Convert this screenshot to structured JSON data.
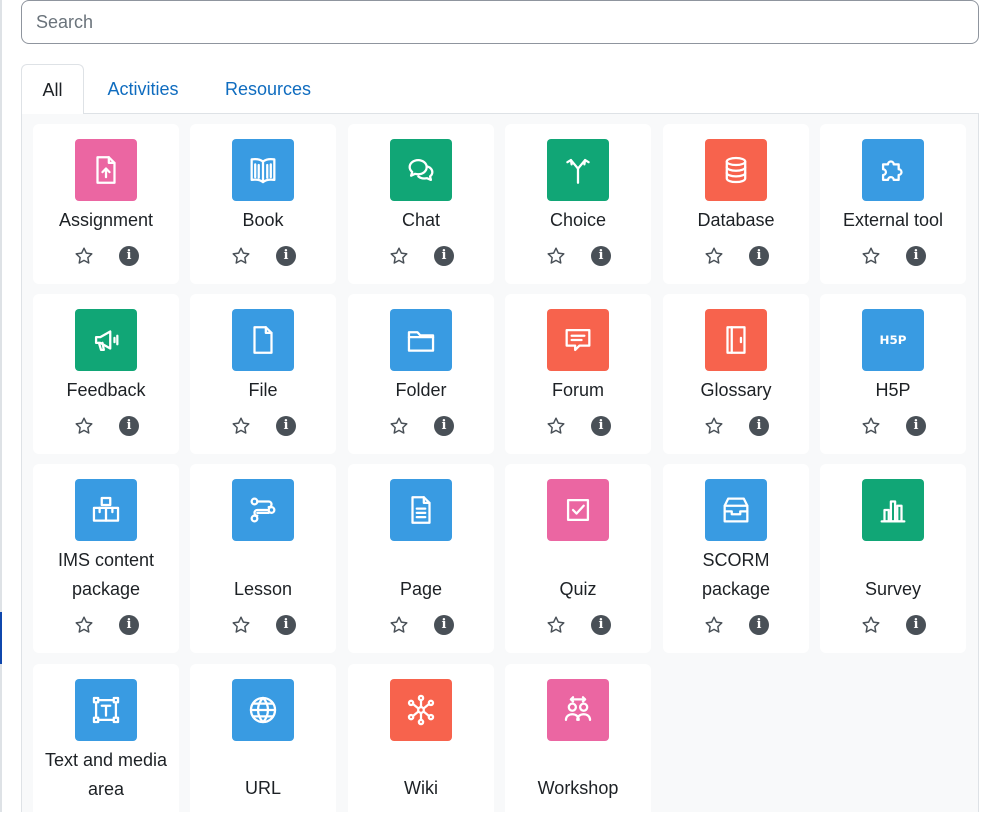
{
  "search": {
    "placeholder": "Search",
    "value": ""
  },
  "tabs": [
    {
      "label": "All",
      "active": true
    },
    {
      "label": "Activities",
      "active": false
    },
    {
      "label": "Resources",
      "active": false
    }
  ],
  "colors": {
    "administration": "#f7634d",
    "assessment": "#eb66a2",
    "collaboration": "#f7634d",
    "communication": "#11a676",
    "content": "#399be2",
    "interface": "#a378ff",
    "link": "#0f6cbf",
    "text": "#1d2125",
    "info_icon": "#495057"
  },
  "modules": [
    {
      "name": "Assignment",
      "icon": "assignment-icon",
      "color": "#eb66a2"
    },
    {
      "name": "Book",
      "icon": "book-icon",
      "color": "#399be2"
    },
    {
      "name": "Chat",
      "icon": "chat-icon",
      "color": "#11a676"
    },
    {
      "name": "Choice",
      "icon": "choice-icon",
      "color": "#11a676"
    },
    {
      "name": "Database",
      "icon": "database-icon",
      "color": "#f7634d"
    },
    {
      "name": "External tool",
      "icon": "puzzle-icon",
      "color": "#399be2"
    },
    {
      "name": "Feedback",
      "icon": "megaphone-icon",
      "color": "#11a676"
    },
    {
      "name": "File",
      "icon": "file-icon",
      "color": "#399be2"
    },
    {
      "name": "Folder",
      "icon": "folder-icon",
      "color": "#399be2"
    },
    {
      "name": "Forum",
      "icon": "forum-icon",
      "color": "#f7634d"
    },
    {
      "name": "Glossary",
      "icon": "glossary-icon",
      "color": "#f7634d"
    },
    {
      "name": "H5P",
      "icon": "h5p-icon",
      "color": "#399be2"
    },
    {
      "name": "IMS content package",
      "icon": "ims-package-icon",
      "color": "#399be2"
    },
    {
      "name": "Lesson",
      "icon": "lesson-icon",
      "color": "#399be2"
    },
    {
      "name": "Page",
      "icon": "page-icon",
      "color": "#399be2"
    },
    {
      "name": "Quiz",
      "icon": "quiz-icon",
      "color": "#eb66a2"
    },
    {
      "name": "SCORM package",
      "icon": "scorm-icon",
      "color": "#399be2"
    },
    {
      "name": "Survey",
      "icon": "survey-icon",
      "color": "#11a676"
    },
    {
      "name": "Text and media area",
      "icon": "text-media-icon",
      "color": "#399be2"
    },
    {
      "name": "URL",
      "icon": "globe-icon",
      "color": "#399be2"
    },
    {
      "name": "Wiki",
      "icon": "wiki-icon",
      "color": "#f7634d"
    },
    {
      "name": "Workshop",
      "icon": "workshop-icon",
      "color": "#eb66a2"
    }
  ],
  "card_actions": {
    "star_icon": "star-icon",
    "info_icon": "info-icon",
    "info_glyph": "i"
  }
}
